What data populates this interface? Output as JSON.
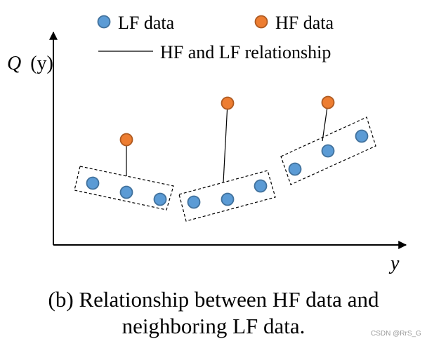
{
  "legend": {
    "lf_label": "LF data",
    "hf_label": "HF data",
    "relationship_label": "HF and LF relationship"
  },
  "axes": {
    "y_label_main": "Q",
    "y_label_paren": "(y)",
    "x_label": "y"
  },
  "colors": {
    "lf_fill": "#5b9bd5",
    "lf_stroke": "#41719c",
    "hf_fill": "#ed7d31",
    "hf_stroke": "#ae5a21"
  },
  "caption": {
    "line1": "(b) Relationship between HF data and",
    "line2": "neighboring LF data."
  },
  "watermark": "CSDN @RrS_G"
}
